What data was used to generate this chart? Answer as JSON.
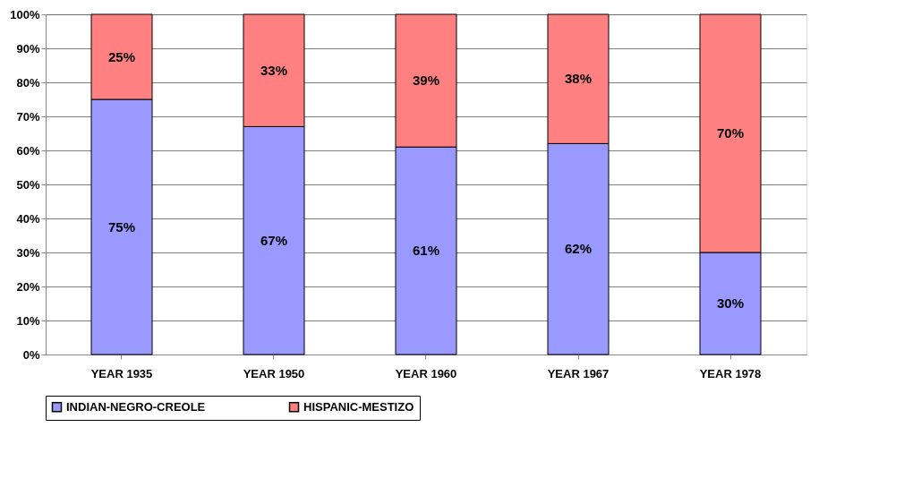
{
  "chart_data": {
    "type": "bar",
    "stacked": true,
    "categories": [
      "YEAR 1935",
      "YEAR 1950",
      "YEAR 1960",
      "YEAR 1967",
      "YEAR 1978"
    ],
    "series": [
      {
        "name": "INDIAN-NEGRO-CREOLE",
        "color": "#9999ff",
        "values": [
          75,
          67,
          61,
          62,
          30
        ],
        "value_labels": [
          "75%",
          "67%",
          "61%",
          "62%",
          "30%"
        ]
      },
      {
        "name": "HISPANIC-MESTIZO",
        "color": "#ff8080",
        "values": [
          25,
          33,
          39,
          38,
          70
        ],
        "value_labels": [
          "25%",
          "33%",
          "39%",
          "38%",
          "70%"
        ]
      }
    ],
    "ylim": [
      0,
      100
    ],
    "yticks": [
      {
        "value": 0,
        "label": "0%"
      },
      {
        "value": 10,
        "label": "10%"
      },
      {
        "value": 20,
        "label": "20%"
      },
      {
        "value": 30,
        "label": "30%"
      },
      {
        "value": 40,
        "label": "40%"
      },
      {
        "value": 50,
        "label": "50%"
      },
      {
        "value": 60,
        "label": "60%"
      },
      {
        "value": 70,
        "label": "70%"
      },
      {
        "value": 80,
        "label": "80%"
      },
      {
        "value": 90,
        "label": "90%"
      },
      {
        "value": 100,
        "label": "100%"
      }
    ],
    "grid": "y",
    "legend": "bottom"
  }
}
